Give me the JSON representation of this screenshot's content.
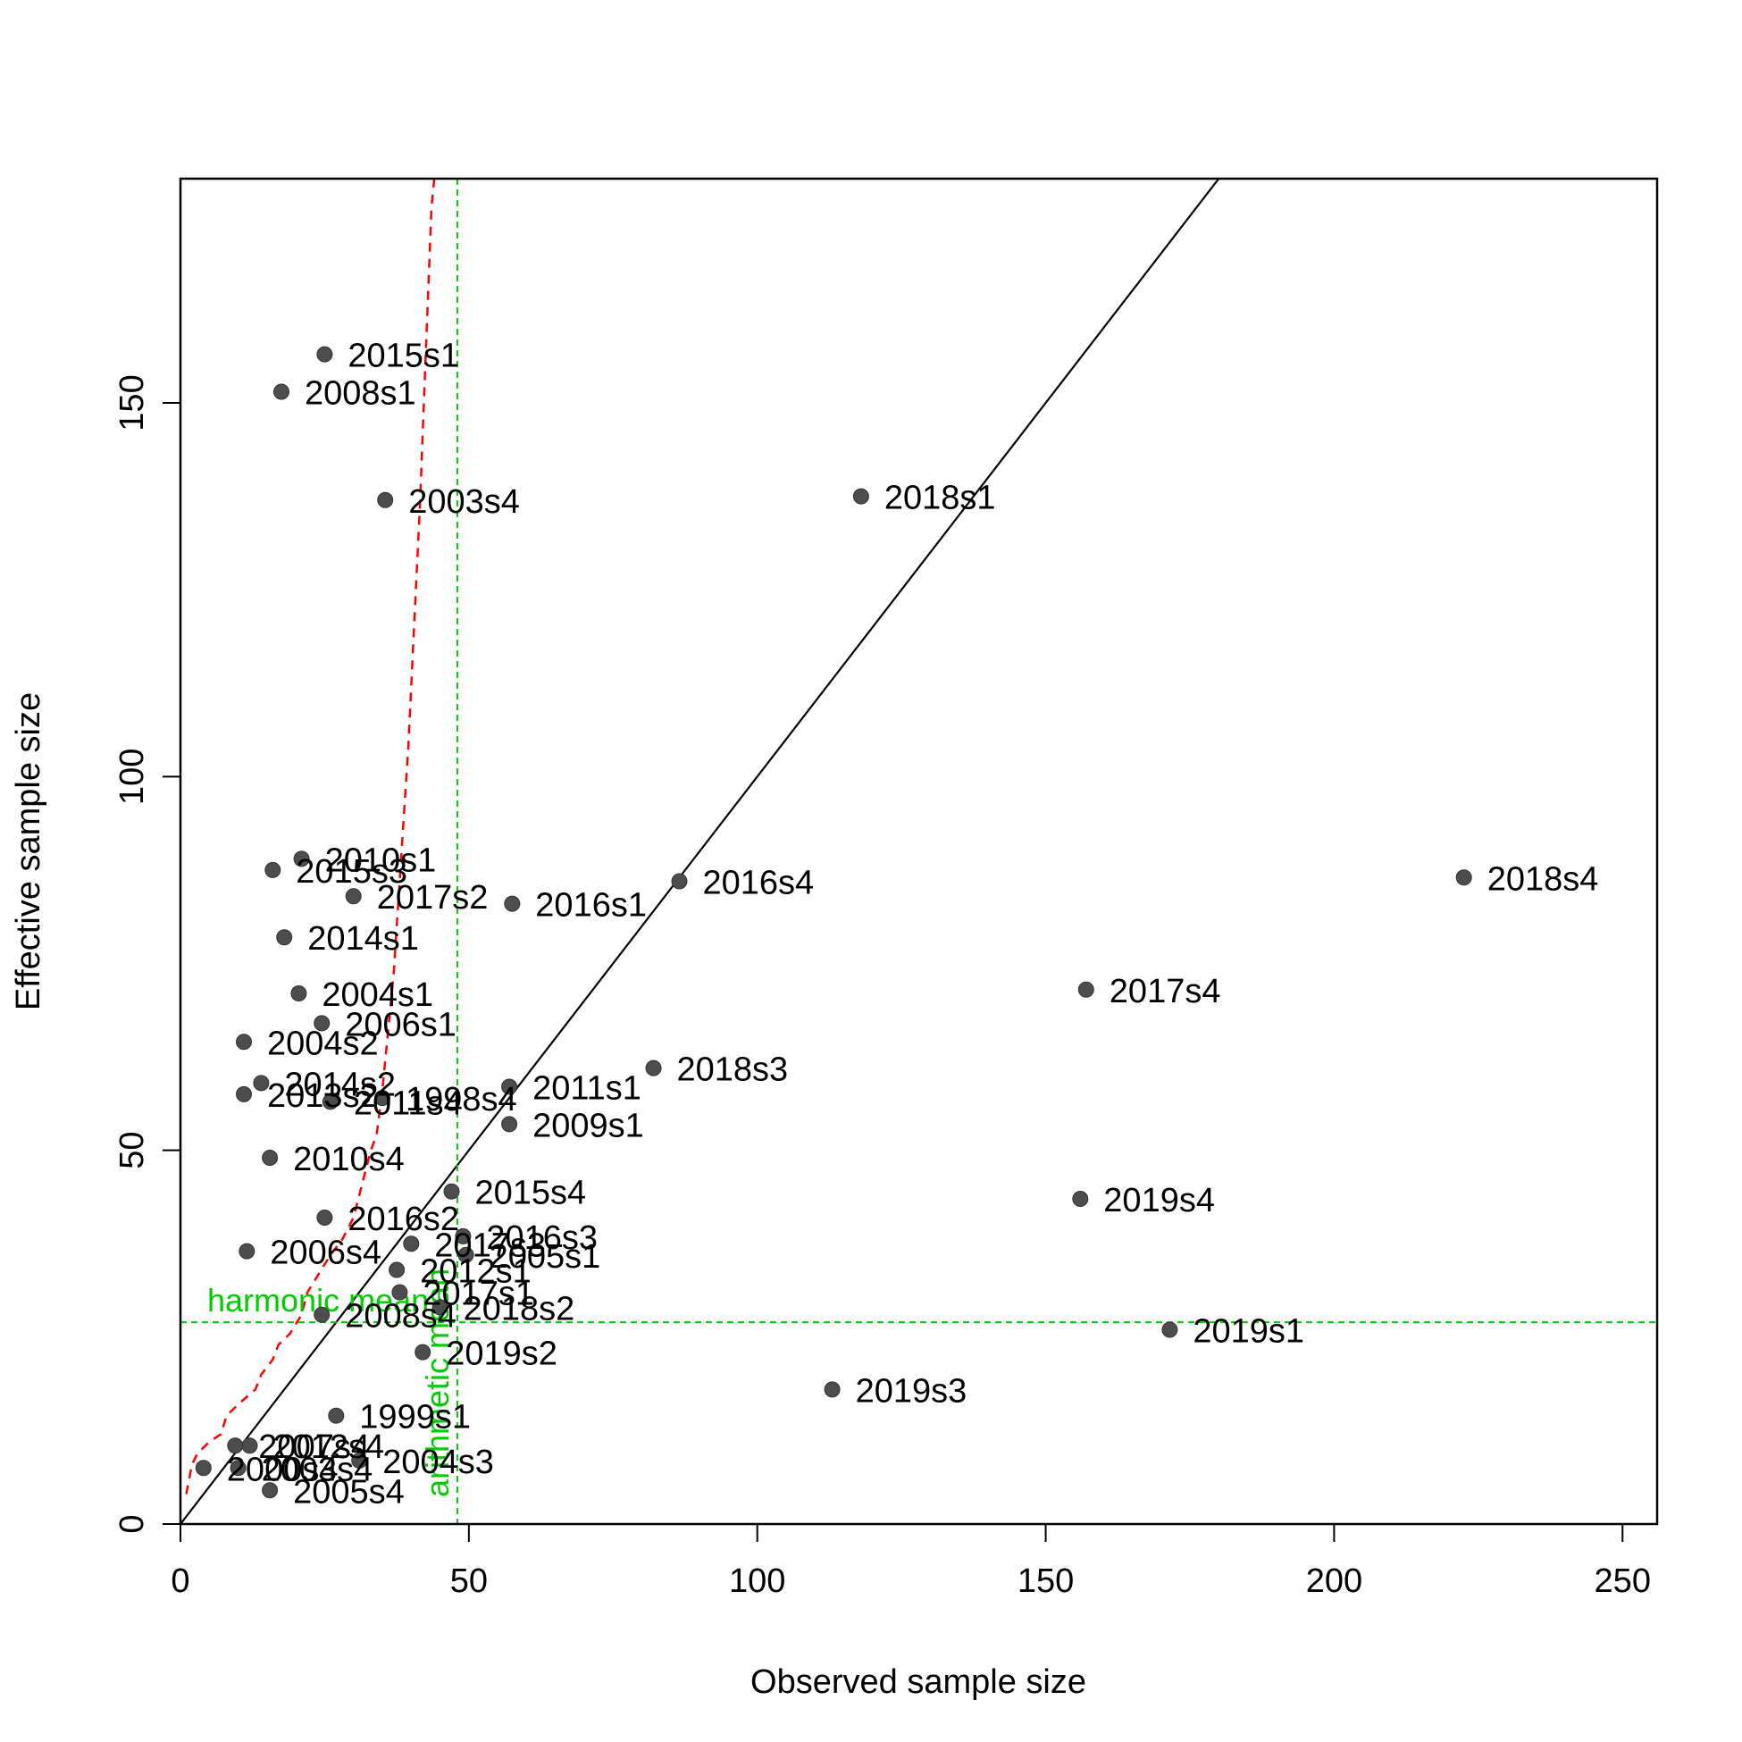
{
  "chart_data": {
    "type": "scatter",
    "title": "",
    "xlabel": "Observed sample size",
    "ylabel": "Effective sample size",
    "xlim": [
      0,
      256
    ],
    "ylim": [
      0,
      180
    ],
    "xticks": [
      0,
      50,
      100,
      150,
      200,
      250
    ],
    "yticks": [
      0,
      50,
      100,
      150
    ],
    "grid": false,
    "colors": {
      "points": "#4d4d4d",
      "identity_line": "#000000",
      "reference_lines": "#00cc00",
      "dashed_curve": "#ff0000"
    },
    "points": [
      {
        "label": "2015s1",
        "x": 25,
        "y": 156.5
      },
      {
        "label": "2008s1",
        "x": 17.5,
        "y": 151.5
      },
      {
        "label": "2003s4",
        "x": 35.5,
        "y": 137
      },
      {
        "label": "2018s1",
        "x": 118,
        "y": 137.5
      },
      {
        "label": "2010s1",
        "x": 21,
        "y": 89
      },
      {
        "label": "2015s3",
        "x": 16,
        "y": 87.5
      },
      {
        "label": "2017s2",
        "x": 30,
        "y": 84
      },
      {
        "label": "2016s1",
        "x": 57.5,
        "y": 83
      },
      {
        "label": "2016s4",
        "x": 86.5,
        "y": 86
      },
      {
        "label": "2018s4",
        "x": 222.5,
        "y": 86.5
      },
      {
        "label": "2014s1",
        "x": 18,
        "y": 78.5
      },
      {
        "label": "2004s1",
        "x": 20.5,
        "y": 71
      },
      {
        "label": "2017s4",
        "x": 157,
        "y": 71.5
      },
      {
        "label": "2006s1",
        "x": 24.5,
        "y": 67
      },
      {
        "label": "2004s2",
        "x": 11,
        "y": 64.5
      },
      {
        "label": "2018s3",
        "x": 82,
        "y": 61
      },
      {
        "label": "2014s2",
        "x": 14,
        "y": 59
      },
      {
        "label": "2013s2",
        "x": 11,
        "y": 57.5
      },
      {
        "label": "2011s4",
        "x": 26,
        "y": 56.5
      },
      {
        "label": "1998s4",
        "x": 35,
        "y": 57
      },
      {
        "label": "2011s1",
        "x": 57,
        "y": 58.5
      },
      {
        "label": "2009s1",
        "x": 57,
        "y": 53.5
      },
      {
        "label": "2010s4",
        "x": 15.5,
        "y": 49
      },
      {
        "label": "2015s4",
        "x": 47,
        "y": 44.5
      },
      {
        "label": "2019s4",
        "x": 156,
        "y": 43.5
      },
      {
        "label": "2016s2",
        "x": 25,
        "y": 41
      },
      {
        "label": "2006s4",
        "x": 11.5,
        "y": 36.5
      },
      {
        "label": "2017s3",
        "x": 40,
        "y": 37.5
      },
      {
        "label": "2016s3",
        "x": 49,
        "y": 38.5
      },
      {
        "label": "2005s1",
        "x": 49.5,
        "y": 36
      },
      {
        "label": "2012s1",
        "x": 37.5,
        "y": 34
      },
      {
        "label": "2017s1",
        "x": 38,
        "y": 31
      },
      {
        "label": "2018s2",
        "x": 45,
        "y": 29
      },
      {
        "label": "2008s4",
        "x": 24.5,
        "y": 28
      },
      {
        "label": "2019s1",
        "x": 171.5,
        "y": 26
      },
      {
        "label": "2019s2",
        "x": 42,
        "y": 23
      },
      {
        "label": "2019s3",
        "x": 113,
        "y": 18
      },
      {
        "label": "1999s1",
        "x": 27,
        "y": 14.5
      },
      {
        "label": "2012s4",
        "x": 12,
        "y": 10.5
      },
      {
        "label": "2007s4",
        "x": 9.5,
        "y": 10.5
      },
      {
        "label": "2004s3",
        "x": 31,
        "y": 8.5
      },
      {
        "label": "2000s4",
        "x": 4,
        "y": 7.5
      },
      {
        "label": "2003s4b",
        "display": "2003s4",
        "x": 10,
        "y": 7.5
      },
      {
        "label": "2005s4",
        "x": 15.5,
        "y": 4.5
      }
    ],
    "identity_line": {
      "slope": 1,
      "intercept": 0
    },
    "reference_lines": [
      {
        "orientation": "horizontal",
        "value": 27,
        "label": "harmonic mean"
      },
      {
        "orientation": "vertical",
        "value": 48,
        "label": "arithmetic mean"
      }
    ],
    "dashed_curve": [
      [
        1,
        4
      ],
      [
        2,
        8
      ],
      [
        3,
        9.5
      ],
      [
        5,
        11
      ],
      [
        7,
        12
      ],
      [
        8,
        14.5
      ],
      [
        10,
        16
      ],
      [
        13,
        18
      ],
      [
        14,
        20
      ],
      [
        16,
        22
      ],
      [
        17,
        24
      ],
      [
        19,
        25.5
      ],
      [
        21,
        28
      ],
      [
        22,
        31
      ],
      [
        24,
        33.5
      ],
      [
        26,
        36
      ],
      [
        28,
        38
      ],
      [
        30,
        41
      ],
      [
        31,
        44
      ],
      [
        32,
        47
      ],
      [
        33,
        50
      ],
      [
        34,
        52
      ],
      [
        34.5,
        55
      ],
      [
        35,
        58
      ],
      [
        35.5,
        62
      ],
      [
        36,
        66
      ],
      [
        36.5,
        70
      ],
      [
        37,
        74
      ],
      [
        37.5,
        80
      ],
      [
        38,
        86
      ],
      [
        38.5,
        92
      ],
      [
        39,
        98
      ],
      [
        39.5,
        104
      ],
      [
        40,
        112
      ],
      [
        40.5,
        120
      ],
      [
        41,
        128
      ],
      [
        41.5,
        136
      ],
      [
        42,
        146
      ],
      [
        42.5,
        156
      ],
      [
        43,
        166
      ],
      [
        43.5,
        176
      ],
      [
        44,
        180
      ]
    ]
  }
}
